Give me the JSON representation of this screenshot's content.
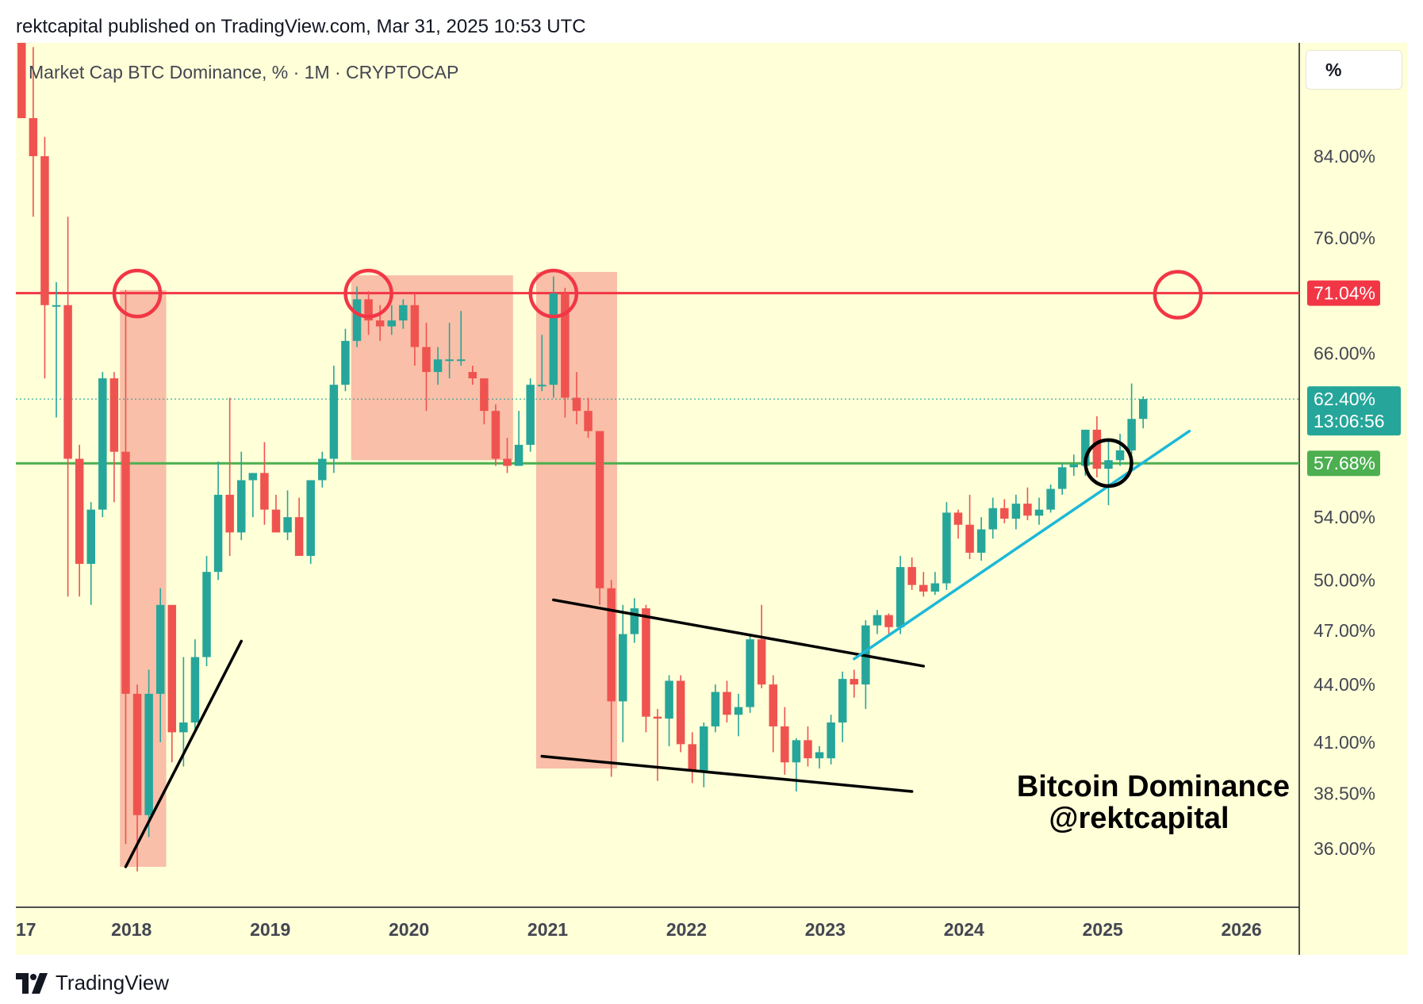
{
  "header": {
    "text": "rektcapital published on TradingView.com, Mar 31, 2025 10:53 UTC"
  },
  "series_title": "Market Cap BTC Dominance, % · 1M · CRYPTOCAP",
  "scale_button": {
    "label": "%"
  },
  "footer": {
    "brand": "TradingView",
    "icon": "tradingview-logo-icon"
  },
  "annotation": {
    "line1": "Bitcoin Dominance",
    "line2": "@rektcapital"
  },
  "colors": {
    "background": "#ffffd8",
    "up": "#26a69a",
    "down": "#ef5350",
    "resistance": "#f23645",
    "support": "#4caf50",
    "trendline_up": "#1cb8d8",
    "highlight_zone": "#f8b4a0",
    "axis_text": "#434651"
  },
  "chart_data": {
    "type": "candlestick",
    "title": "Market Cap BTC Dominance, % · 1M · CRYPTOCAP",
    "scale": "log",
    "ylim": [
      33.5,
      96.5
    ],
    "y_ticks": [
      "84.00%",
      "76.00%",
      "71.04%",
      "66.00%",
      "62.40%",
      "57.68%",
      "54.00%",
      "50.00%",
      "47.00%",
      "44.00%",
      "41.00%",
      "38.50%",
      "36.00%"
    ],
    "x_ticks": [
      "17",
      "2018",
      "2019",
      "2020",
      "2021",
      "2022",
      "2023",
      "2024",
      "2025",
      "2026"
    ],
    "x_start": "2017-03",
    "x_end": "2026-06",
    "candles": [
      {
        "t": "2017-03",
        "o": 100,
        "h": 100,
        "l": 88,
        "c": 88
      },
      {
        "t": "2017-04",
        "o": 88,
        "h": 96,
        "l": 78,
        "c": 84
      },
      {
        "t": "2017-05",
        "o": 84,
        "h": 86,
        "l": 64,
        "c": 70
      },
      {
        "t": "2017-06",
        "o": 70,
        "h": 72,
        "l": 61,
        "c": 70
      },
      {
        "t": "2017-07",
        "o": 70,
        "h": 78,
        "l": 49,
        "c": 58
      },
      {
        "t": "2017-08",
        "o": 58,
        "h": 59,
        "l": 49,
        "c": 51
      },
      {
        "t": "2017-09",
        "o": 51,
        "h": 55,
        "l": 48.5,
        "c": 54.5
      },
      {
        "t": "2017-10",
        "o": 54.5,
        "h": 64.5,
        "l": 54,
        "c": 64
      },
      {
        "t": "2017-11",
        "o": 64,
        "h": 64.5,
        "l": 55,
        "c": 58.5
      },
      {
        "t": "2017-12",
        "o": 58.5,
        "h": 71.3,
        "l": 36.2,
        "c": 43.5
      },
      {
        "t": "2018-01",
        "o": 43.5,
        "h": 44,
        "l": 35,
        "c": 37.5
      },
      {
        "t": "2018-02",
        "o": 37.5,
        "h": 44.8,
        "l": 36.5,
        "c": 43.5
      },
      {
        "t": "2018-03",
        "o": 43.5,
        "h": 49.5,
        "l": 41,
        "c": 48.5
      },
      {
        "t": "2018-04",
        "o": 48.5,
        "h": 48.5,
        "l": 40,
        "c": 41.5
      },
      {
        "t": "2018-05",
        "o": 41.5,
        "h": 45.5,
        "l": 39.8,
        "c": 42
      },
      {
        "t": "2018-06",
        "o": 42,
        "h": 46.5,
        "l": 41.5,
        "c": 45.5
      },
      {
        "t": "2018-07",
        "o": 45.5,
        "h": 51.5,
        "l": 45,
        "c": 50.5
      },
      {
        "t": "2018-08",
        "o": 50.5,
        "h": 57.8,
        "l": 50,
        "c": 55.5
      },
      {
        "t": "2018-09",
        "o": 55.5,
        "h": 62.5,
        "l": 51.5,
        "c": 53
      },
      {
        "t": "2018-10",
        "o": 53,
        "h": 58.5,
        "l": 52.5,
        "c": 56.5
      },
      {
        "t": "2018-11",
        "o": 56.5,
        "h": 57,
        "l": 54,
        "c": 57
      },
      {
        "t": "2018-12",
        "o": 57,
        "h": 59.2,
        "l": 53.5,
        "c": 54.5
      },
      {
        "t": "2019-01",
        "o": 54.5,
        "h": 55.5,
        "l": 53,
        "c": 53
      },
      {
        "t": "2019-02",
        "o": 53,
        "h": 55.8,
        "l": 52.5,
        "c": 54
      },
      {
        "t": "2019-03",
        "o": 54,
        "h": 55.3,
        "l": 51.8,
        "c": 51.5
      },
      {
        "t": "2019-04",
        "o": 51.5,
        "h": 56.5,
        "l": 51,
        "c": 56.5
      },
      {
        "t": "2019-05",
        "o": 56.5,
        "h": 58.5,
        "l": 56,
        "c": 58
      },
      {
        "t": "2019-06",
        "o": 58,
        "h": 65,
        "l": 57,
        "c": 63.5
      },
      {
        "t": "2019-07",
        "o": 63.5,
        "h": 68,
        "l": 63,
        "c": 67
      },
      {
        "t": "2019-08",
        "o": 67,
        "h": 71.6,
        "l": 66.5,
        "c": 70.5
      },
      {
        "t": "2019-09",
        "o": 70.5,
        "h": 71.2,
        "l": 67.5,
        "c": 68.7
      },
      {
        "t": "2019-10",
        "o": 68.7,
        "h": 70,
        "l": 67,
        "c": 68.2
      },
      {
        "t": "2019-11",
        "o": 68.2,
        "h": 70,
        "l": 67.5,
        "c": 68.7
      },
      {
        "t": "2019-12",
        "o": 68.7,
        "h": 70.5,
        "l": 68,
        "c": 70
      },
      {
        "t": "2020-01",
        "o": 70,
        "h": 71,
        "l": 65,
        "c": 66.5
      },
      {
        "t": "2020-02",
        "o": 66.5,
        "h": 68.5,
        "l": 61.5,
        "c": 64.5
      },
      {
        "t": "2020-03",
        "o": 64.5,
        "h": 66.5,
        "l": 63.5,
        "c": 65.5
      },
      {
        "t": "2020-04",
        "o": 65.5,
        "h": 68.5,
        "l": 64,
        "c": 65.5
      },
      {
        "t": "2020-05",
        "o": 65.5,
        "h": 69.5,
        "l": 65,
        "c": 65.5
      },
      {
        "t": "2020-06",
        "o": 64.5,
        "h": 65,
        "l": 63.5,
        "c": 64
      },
      {
        "t": "2020-07",
        "o": 64,
        "h": 64,
        "l": 60.5,
        "c": 61.5
      },
      {
        "t": "2020-08",
        "o": 61.5,
        "h": 62,
        "l": 57.5,
        "c": 58
      },
      {
        "t": "2020-09",
        "o": 58,
        "h": 59.5,
        "l": 57,
        "c": 57.5
      },
      {
        "t": "2020-10",
        "o": 57.5,
        "h": 61.5,
        "l": 57.5,
        "c": 59
      },
      {
        "t": "2020-11",
        "o": 59,
        "h": 64,
        "l": 58.5,
        "c": 63.5
      },
      {
        "t": "2020-12",
        "o": 63.5,
        "h": 67.5,
        "l": 63,
        "c": 63.5
      },
      {
        "t": "2021-01",
        "o": 63.5,
        "h": 72.5,
        "l": 62.5,
        "c": 71
      },
      {
        "t": "2021-02",
        "o": 71,
        "h": 71.5,
        "l": 61,
        "c": 62.5
      },
      {
        "t": "2021-03",
        "o": 62.5,
        "h": 64.5,
        "l": 60.5,
        "c": 61.5
      },
      {
        "t": "2021-04",
        "o": 61.5,
        "h": 62.5,
        "l": 59.5,
        "c": 60
      },
      {
        "t": "2021-05",
        "o": 60,
        "h": 60,
        "l": 48.5,
        "c": 49.5
      },
      {
        "t": "2021-06",
        "o": 49.5,
        "h": 50,
        "l": 39.3,
        "c": 43.1
      },
      {
        "t": "2021-07",
        "o": 43.1,
        "h": 48.5,
        "l": 41,
        "c": 46.8
      },
      {
        "t": "2021-08",
        "o": 46.8,
        "h": 48.9,
        "l": 46.3,
        "c": 48.3
      },
      {
        "t": "2021-09",
        "o": 48.3,
        "h": 48.5,
        "l": 41.5,
        "c": 42.3
      },
      {
        "t": "2021-10",
        "o": 42.3,
        "h": 42.7,
        "l": 39.1,
        "c": 42.2
      },
      {
        "t": "2021-11",
        "o": 42.2,
        "h": 44.5,
        "l": 40.8,
        "c": 44.2
      },
      {
        "t": "2021-12",
        "o": 44.2,
        "h": 44.5,
        "l": 40.5,
        "c": 40.9
      },
      {
        "t": "2022-01",
        "o": 40.9,
        "h": 41.5,
        "l": 39,
        "c": 39.6
      },
      {
        "t": "2022-02",
        "o": 39.6,
        "h": 42,
        "l": 38.8,
        "c": 41.8
      },
      {
        "t": "2022-03",
        "o": 41.8,
        "h": 44,
        "l": 41.5,
        "c": 43.6
      },
      {
        "t": "2022-04",
        "o": 43.6,
        "h": 44.2,
        "l": 42,
        "c": 42.4
      },
      {
        "t": "2022-05",
        "o": 42.4,
        "h": 43.5,
        "l": 41.3,
        "c": 42.8
      },
      {
        "t": "2022-06",
        "o": 42.8,
        "h": 46.8,
        "l": 42.5,
        "c": 46.5
      },
      {
        "t": "2022-07",
        "o": 46.5,
        "h": 48.5,
        "l": 43.8,
        "c": 44
      },
      {
        "t": "2022-08",
        "o": 44,
        "h": 44.5,
        "l": 40.5,
        "c": 41.8
      },
      {
        "t": "2022-09",
        "o": 41.8,
        "h": 42.8,
        "l": 39.4,
        "c": 40
      },
      {
        "t": "2022-10",
        "o": 40,
        "h": 41.2,
        "l": 38.6,
        "c": 41.1
      },
      {
        "t": "2022-11",
        "o": 41.1,
        "h": 41.8,
        "l": 39.8,
        "c": 40.2
      },
      {
        "t": "2022-12",
        "o": 40.2,
        "h": 40.8,
        "l": 39.7,
        "c": 40.5
      },
      {
        "t": "2023-01",
        "o": 40.2,
        "h": 42.4,
        "l": 39.9,
        "c": 42
      },
      {
        "t": "2023-02",
        "o": 42,
        "h": 44.7,
        "l": 41,
        "c": 44.3
      },
      {
        "t": "2023-03",
        "o": 44.3,
        "h": 44.8,
        "l": 43.3,
        "c": 44
      },
      {
        "t": "2023-04",
        "o": 44,
        "h": 47.6,
        "l": 42.7,
        "c": 47.3
      },
      {
        "t": "2023-05",
        "o": 47.3,
        "h": 48.2,
        "l": 46.8,
        "c": 47.9
      },
      {
        "t": "2023-06",
        "o": 47.9,
        "h": 48,
        "l": 46.8,
        "c": 47.2
      },
      {
        "t": "2023-07",
        "o": 47.2,
        "h": 51.5,
        "l": 46.8,
        "c": 50.8
      },
      {
        "t": "2023-08",
        "o": 50.8,
        "h": 51.4,
        "l": 49.4,
        "c": 49.7
      },
      {
        "t": "2023-09",
        "o": 49.7,
        "h": 50.5,
        "l": 49,
        "c": 49.3
      },
      {
        "t": "2023-10",
        "o": 49.3,
        "h": 50.5,
        "l": 49.1,
        "c": 49.8
      },
      {
        "t": "2023-11",
        "o": 49.8,
        "h": 55,
        "l": 49.4,
        "c": 54.3
      },
      {
        "t": "2023-12",
        "o": 54.3,
        "h": 54.5,
        "l": 52.6,
        "c": 53.5
      },
      {
        "t": "2024-01",
        "o": 53.5,
        "h": 55.5,
        "l": 51.3,
        "c": 51.7
      },
      {
        "t": "2024-02",
        "o": 51.7,
        "h": 54,
        "l": 51.2,
        "c": 53.2
      },
      {
        "t": "2024-03",
        "o": 53.2,
        "h": 55.3,
        "l": 52.6,
        "c": 54.6
      },
      {
        "t": "2024-04",
        "o": 54.6,
        "h": 55.2,
        "l": 53.6,
        "c": 53.9
      },
      {
        "t": "2024-05",
        "o": 53.9,
        "h": 55.5,
        "l": 53.2,
        "c": 54.9
      },
      {
        "t": "2024-06",
        "o": 54.9,
        "h": 56,
        "l": 53.8,
        "c": 54.1
      },
      {
        "t": "2024-07",
        "o": 54.1,
        "h": 55.3,
        "l": 53.5,
        "c": 54.5
      },
      {
        "t": "2024-08",
        "o": 54.5,
        "h": 56.2,
        "l": 54.3,
        "c": 55.9
      },
      {
        "t": "2024-09",
        "o": 55.9,
        "h": 57.7,
        "l": 55.5,
        "c": 57.4
      },
      {
        "t": "2024-10",
        "o": 57.4,
        "h": 58.3,
        "l": 56.8,
        "c": 57.6
      },
      {
        "t": "2024-11",
        "o": 57.5,
        "h": 60.1,
        "l": 56.8,
        "c": 60.1
      },
      {
        "t": "2024-12",
        "o": 60.1,
        "h": 61.1,
        "l": 56.7,
        "c": 57.3
      },
      {
        "t": "2025-01",
        "o": 57.3,
        "h": 59.4,
        "l": 54.8,
        "c": 57.9
      },
      {
        "t": "2025-02",
        "o": 57.9,
        "h": 59.8,
        "l": 57.5,
        "c": 58.6
      },
      {
        "t": "2025-03",
        "o": 58.6,
        "h": 63.6,
        "l": 58.3,
        "c": 60.9
      },
      {
        "t": "2025-04",
        "o": 60.9,
        "h": 62.6,
        "l": 60.2,
        "c": 62.4
      }
    ],
    "horizontal_levels": [
      {
        "name": "resistance",
        "value": 71.04,
        "label": "71.04%"
      },
      {
        "name": "support",
        "value": 57.68,
        "label": "57.68%"
      }
    ],
    "last_price": {
      "value": 62.4,
      "label": "62.40%",
      "countdown": "13:06:56"
    },
    "highlight_zones": [
      {
        "from": "2017-12",
        "to": "2018-03",
        "top": 71.3,
        "bottom": 35.2
      },
      {
        "from": "2019-08",
        "to": "2020-09",
        "top": 72.6,
        "bottom": 57.9
      },
      {
        "from": "2020-12",
        "to": "2021-06",
        "top": 72.9,
        "bottom": 39.7
      }
    ],
    "circles": [
      {
        "t": "2018-01",
        "v": 71.0,
        "color": "red"
      },
      {
        "t": "2019-09",
        "v": 71.0,
        "color": "red"
      },
      {
        "t": "2021-01",
        "v": 71.0,
        "color": "red"
      },
      {
        "t": "2025-07",
        "v": 70.9,
        "color": "red"
      },
      {
        "t": "2025-01",
        "v": 57.7,
        "color": "black"
      }
    ],
    "trendlines": [
      {
        "name": "trendline-2018",
        "color": "black",
        "from": {
          "t": "2017-12",
          "v": 35.2
        },
        "to": {
          "t": "2018-10",
          "v": 46.4
        }
      },
      {
        "name": "wedge-upper",
        "color": "black",
        "from": {
          "t": "2021-01",
          "v": 48.8
        },
        "to": {
          "t": "2023-09",
          "v": 45.0
        }
      },
      {
        "name": "wedge-lower",
        "color": "black",
        "from": {
          "t": "2020-12",
          "v": 40.3
        },
        "to": {
          "t": "2023-08",
          "v": 38.6
        }
      },
      {
        "name": "uptrend-line",
        "color": "cyan",
        "from": {
          "t": "2023-03",
          "v": 45.4
        },
        "to": {
          "t": "2025-08",
          "v": 60.0
        }
      }
    ]
  }
}
